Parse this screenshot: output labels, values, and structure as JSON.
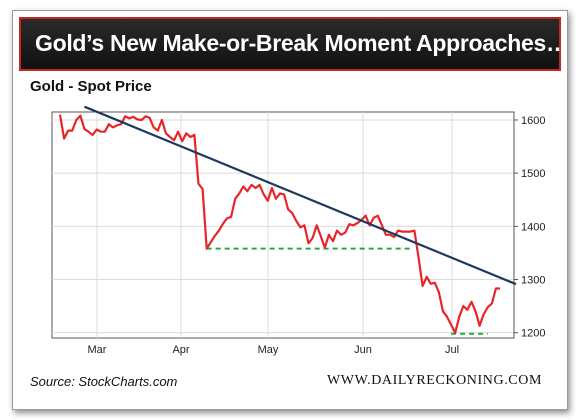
{
  "header": {
    "title": "Gold’s New Make-or-Break Moment Approaches…"
  },
  "colors": {
    "price_line": "#e8262a",
    "trend_line": "#1d3a5c",
    "support": "#2aa64a",
    "banner_border": "#c2281f"
  },
  "footer": {
    "source": "Source: StockCharts.com",
    "site": "WWW.DAILYRECKONING.COM"
  },
  "chart_data": {
    "type": "line",
    "title": "Gold - Spot Price",
    "xlabel": "",
    "ylabel": "",
    "x_ticks": [
      "Mar",
      "Apr",
      "May",
      "Jun",
      "Jul"
    ],
    "y_ticks": [
      1200,
      1300,
      1400,
      1500,
      1600
    ],
    "ylim": [
      1190,
      1615
    ],
    "grid": true,
    "series": [
      {
        "values": [
          1610,
          1565,
          1580,
          1580,
          1600,
          1608,
          1583,
          1578,
          1572,
          1582,
          1578,
          1578,
          1592,
          1586,
          1590,
          1592,
          1607,
          1603,
          1606,
          1601,
          1600,
          1607,
          1604,
          1586,
          1580,
          1600,
          1575,
          1568,
          1562,
          1578,
          1560,
          1575,
          1568,
          1572,
          1480,
          1470,
          1358,
          1370,
          1382,
          1392,
          1405,
          1415,
          1418,
          1452,
          1462,
          1475,
          1466,
          1478,
          1472,
          1478,
          1460,
          1448,
          1472,
          1452,
          1462,
          1460,
          1432,
          1425,
          1410,
          1398,
          1402,
          1368,
          1378,
          1402,
          1382,
          1360,
          1384,
          1372,
          1392,
          1384,
          1388,
          1404,
          1402,
          1406,
          1412,
          1420,
          1402,
          1416,
          1420,
          1402,
          1384,
          1384,
          1380,
          1392,
          1390,
          1390,
          1390,
          1392,
          1342,
          1288,
          1305,
          1292,
          1294,
          1276,
          1240,
          1230,
          1215,
          1200,
          1230,
          1250,
          1243,
          1258,
          1240,
          1213,
          1235,
          1248,
          1255,
          1283,
          1283
        ]
      }
    ],
    "annotations": {
      "trendline": [
        {
          "index": 6,
          "value": 1625
        },
        {
          "index": 108,
          "value": 1295
        }
      ],
      "support_1": {
        "value": 1358,
        "from_index": 36,
        "to_index": 86
      },
      "support_2": {
        "value": 1198,
        "from_index": 96,
        "to_index": 105
      }
    }
  }
}
